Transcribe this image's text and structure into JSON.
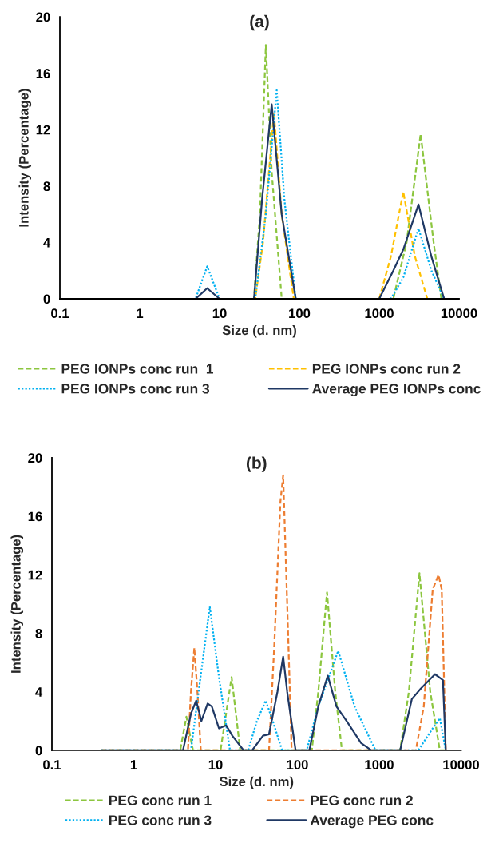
{
  "chart_data": [
    {
      "type": "line",
      "title": "(a)",
      "xlabel": "Size (d. nm)",
      "ylabel": "Intensity (Percentage)",
      "log": "x",
      "legend": "bottom",
      "xlim": [
        0.1,
        10000
      ],
      "ylim": [
        0,
        20
      ],
      "xticks": [
        0.1,
        1,
        10,
        100,
        1000,
        10000
      ],
      "yticks": [
        0,
        4,
        8,
        12,
        16,
        20
      ],
      "series": [
        {
          "name": "PEG IONPs conc run  1",
          "color": "#8cc63f",
          "line_style": "dashed",
          "x": [
            0.4,
            27,
            32,
            38,
            45,
            60,
            1500,
            2200,
            3300,
            4800,
            6000,
            8000
          ],
          "values": [
            0,
            0,
            6,
            18,
            9,
            0,
            0,
            4,
            11.7,
            4,
            0,
            0
          ]
        },
        {
          "name": "PEG IONPs conc run 2",
          "color": "#ffc000",
          "line_style": "dashed",
          "x": [
            0.4,
            28,
            35,
            48,
            60,
            85,
            1000,
            1400,
            2000,
            2800,
            4000,
            8000
          ],
          "values": [
            0,
            0,
            4,
            13.2,
            6,
            0,
            0,
            3,
            7.6,
            3,
            0,
            0
          ]
        },
        {
          "name": "PEG IONPs conc run 3",
          "color": "#00b0f0",
          "line_style": "dotted",
          "x": [
            0.4,
            5,
            7,
            10,
            28,
            38,
            52,
            65,
            90,
            1400,
            2000,
            3100,
            4500,
            6500,
            8000
          ],
          "values": [
            0,
            0,
            2.3,
            0,
            0,
            6,
            14.8,
            7,
            0,
            0,
            1.5,
            5,
            2,
            0,
            0
          ]
        },
        {
          "name": "Average PEG IONPs conc",
          "color": "#1f3864",
          "line_style": "solid",
          "x": [
            0.4,
            5,
            7,
            10,
            27,
            34,
            45,
            60,
            90,
            1000,
            1500,
            2000,
            3100,
            4500,
            6500,
            8000
          ],
          "values": [
            0,
            0,
            0.75,
            0,
            0,
            7,
            13.8,
            6,
            0,
            0,
            2,
            3.5,
            6.7,
            3,
            0,
            0
          ]
        }
      ]
    },
    {
      "type": "line",
      "title": "(b)",
      "xlabel": "Size (d. nm)",
      "ylabel": "Intensity (Percentage)",
      "log": "x",
      "legend": "bottom",
      "xlim": [
        0.1,
        10000
      ],
      "ylim": [
        0,
        20
      ],
      "xticks": [
        0.1,
        1,
        10,
        100,
        1000,
        10000
      ],
      "yticks": [
        0,
        4,
        8,
        12,
        16,
        20
      ],
      "series": [
        {
          "name": "PEG conc run 1",
          "color": "#8cc63f",
          "line_style": "dashed",
          "x": [
            0.4,
            3.7,
            4.4,
            5.3,
            11.5,
            15.7,
            20,
            150,
            180,
            230,
            290,
            350,
            1800,
            2300,
            3100,
            4200,
            5500,
            6500
          ],
          "values": [
            0,
            0,
            2.3,
            0,
            0,
            5,
            0,
            0,
            4,
            10.8,
            4,
            0,
            0,
            4,
            12.1,
            4,
            0,
            0
          ]
        },
        {
          "name": "PEG conc run 2",
          "color": "#ed7d31",
          "line_style": "dashed",
          "x": [
            0.4,
            4.6,
            5.0,
            5.5,
            6.0,
            6.6,
            45,
            52,
            62,
            67,
            75,
            85,
            2800,
            3500,
            4500,
            5300,
            5800,
            6500
          ],
          "values": [
            0,
            0,
            4,
            7,
            4,
            0,
            0,
            7,
            17,
            18.8,
            10,
            0,
            0,
            3,
            11,
            12,
            11,
            0
          ]
        },
        {
          "name": "PEG conc run 3",
          "color": "#00b0f0",
          "line_style": "dotted",
          "x": [
            0.4,
            5,
            6.2,
            8.5,
            11,
            15,
            25,
            32,
            41,
            50,
            65,
            130,
            180,
            315,
            500,
            900,
            3000,
            4500,
            5500,
            6500
          ],
          "values": [
            0,
            0,
            4,
            9.8,
            5,
            0,
            0,
            2,
            3.4,
            2,
            0,
            0,
            3,
            6.8,
            3,
            0,
            0,
            1.5,
            2.2,
            0
          ]
        },
        {
          "name": "Average PEG conc",
          "color": "#1f3864",
          "line_style": "solid",
          "x": [
            0.4,
            4,
            5,
            5.8,
            6.7,
            8,
            9,
            11,
            13.5,
            16,
            22,
            28,
            38,
            45,
            57,
            67,
            75,
            95,
            140,
            180,
            235,
            300,
            400,
            600,
            800,
            1800,
            2500,
            3200,
            4800,
            6000,
            6500
          ],
          "values": [
            0,
            0,
            2.5,
            3.4,
            2,
            3.2,
            3,
            1.5,
            1.7,
            1,
            0,
            0,
            1,
            1.1,
            4,
            6.4,
            4,
            0,
            0,
            3,
            5.1,
            3,
            2,
            0.5,
            0,
            0,
            3.5,
            4.2,
            5.2,
            4.8,
            0
          ]
        }
      ]
    }
  ]
}
